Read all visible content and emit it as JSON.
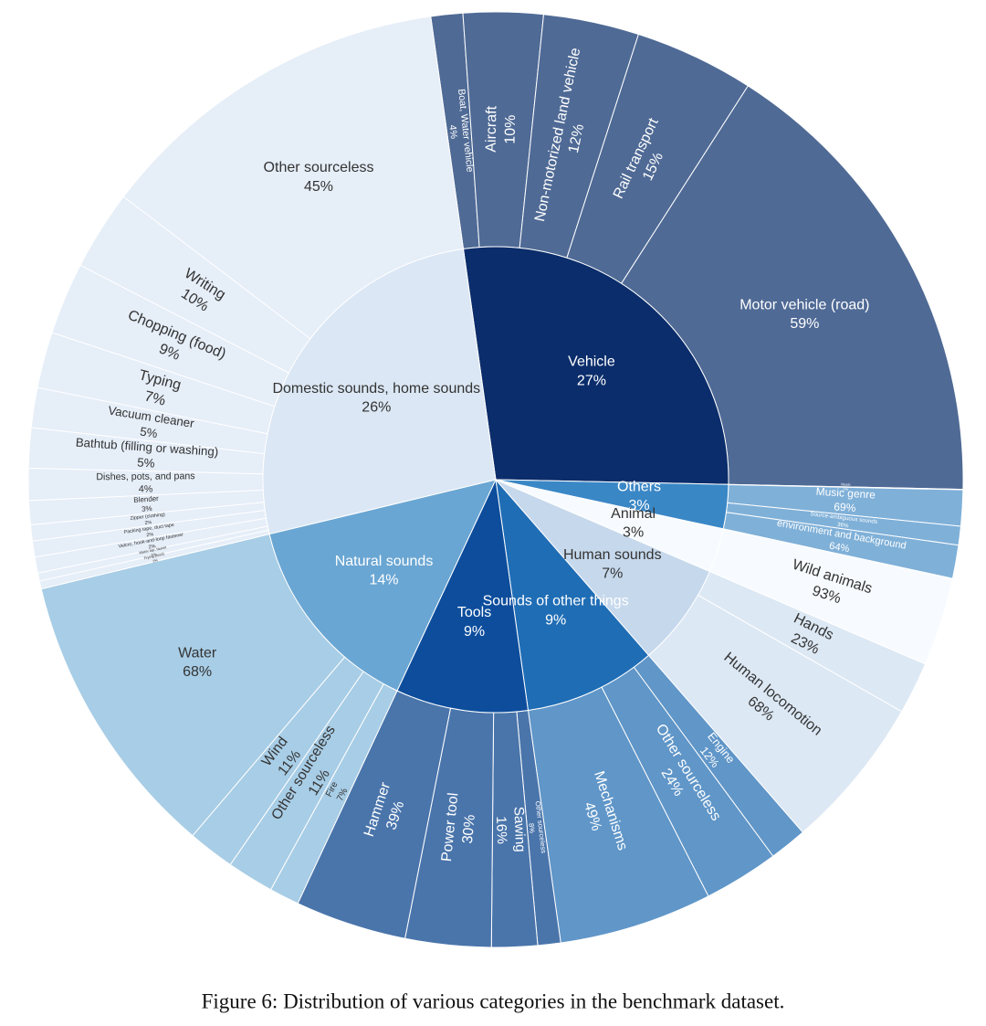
{
  "chart_data": {
    "type": "sunburst",
    "caption": "Figure 6: Distribution of various categories in the benchmark dataset.",
    "nodes": [
      {
        "name": "Vehicle",
        "value": 27,
        "value_label": "27%",
        "color": "#0b2d6b",
        "child_color": "#4f6a95",
        "children": [
          {
            "name": "Boat, Water vehicle",
            "value": 4,
            "value_label": "4%"
          },
          {
            "name": "Aircraft",
            "value": 10,
            "value_label": "10%"
          },
          {
            "name": "Non-motorized land vehicle",
            "value": 12,
            "value_label": "12%"
          },
          {
            "name": "Rail transport",
            "value": 15,
            "value_label": "15%"
          },
          {
            "name": "Motor vehicle (road)",
            "value": 59,
            "value_label": "59%"
          }
        ]
      },
      {
        "name": "Others",
        "value": 3,
        "value_label": "3%",
        "color": "#3a87c6",
        "child_color": "#7fb0d8",
        "children": [
          {
            "name": "Music",
            "value": 1,
            "value_label": "1%"
          },
          {
            "name": "Music genre",
            "value": 69,
            "value_label": "69%"
          },
          {
            "name": "Source-ambiguous sounds",
            "value": 36,
            "value_label": "36%"
          },
          {
            "name": "environment and background",
            "value": 64,
            "value_label": "64%"
          }
        ]
      },
      {
        "name": "Animal",
        "value": 3,
        "value_label": "3%",
        "color": "#f7fbff",
        "child_color": "#f7fbff",
        "children": [
          {
            "name": "Wild animals",
            "value": 93,
            "value_label": "93%"
          }
        ]
      },
      {
        "name": "Human sounds",
        "value": 7,
        "value_label": "7%",
        "color": "#c6d8ec",
        "child_color": "#dce8f4",
        "children": [
          {
            "name": "Hands",
            "value": 23,
            "value_label": "23%"
          },
          {
            "name": "Human locomotion",
            "value": 68,
            "value_label": "68%"
          }
        ]
      },
      {
        "name": "Sounds of other things",
        "value": 9,
        "value_label": "9%",
        "color": "#1f6db5",
        "child_color": "#6096c8",
        "children": [
          {
            "name": "Engine",
            "value": 12,
            "value_label": "12%"
          },
          {
            "name": "Other sourceless",
            "value": 24,
            "value_label": "24%"
          },
          {
            "name": "Mechanisms",
            "value": 49,
            "value_label": "49%"
          }
        ]
      },
      {
        "name": "Tools",
        "value": 9,
        "value_label": "9%",
        "color": "#0d4d9c",
        "child_color": "#4a75ab",
        "children": [
          {
            "name": "Other sourceless",
            "value": 8,
            "value_label": "8%"
          },
          {
            "name": "Sawing",
            "value": 16,
            "value_label": "16%"
          },
          {
            "name": "Power tool",
            "value": 30,
            "value_label": "30%"
          },
          {
            "name": "Hammer",
            "value": 39,
            "value_label": "39%"
          }
        ]
      },
      {
        "name": "Natural sounds",
        "value": 14,
        "value_label": "14%",
        "color": "#6aa6d3",
        "child_color": "#a8cde6",
        "children": [
          {
            "name": "Fire",
            "value": 7,
            "value_label": "7%"
          },
          {
            "name": "Other sourceless",
            "value": 11,
            "value_label": "11%"
          },
          {
            "name": "Wind",
            "value": 11,
            "value_label": "11%"
          },
          {
            "name": "Water",
            "value": 68,
            "value_label": "68%"
          }
        ]
      },
      {
        "name": "Domestic sounds, home sounds",
        "value": 26,
        "value_label": "26%",
        "color": "#dbe7f4",
        "child_color": "#e6eef8",
        "children": [
          {
            "name": "Frying (food)",
            "value": 1,
            "value_label": "1%"
          },
          {
            "name": "Water tap, faucet",
            "value": 1,
            "value_label": "1%"
          },
          {
            "name": "Velcro, hook-and-loop fastener",
            "value": 2,
            "value_label": "2%"
          },
          {
            "name": "Packing tape, duct tape",
            "value": 2,
            "value_label": "2%"
          },
          {
            "name": "Zipper (clothing)",
            "value": 2,
            "value_label": "2%"
          },
          {
            "name": "Blender",
            "value": 3,
            "value_label": "3%"
          },
          {
            "name": "Dishes, pots, and pans",
            "value": 4,
            "value_label": "4%"
          },
          {
            "name": "Bathtub (filling or washing)",
            "value": 5,
            "value_label": "5%"
          },
          {
            "name": "Vacuum cleaner",
            "value": 5,
            "value_label": "5%"
          },
          {
            "name": "Typing",
            "value": 7,
            "value_label": "7%"
          },
          {
            "name": "Chopping (food)",
            "value": 9,
            "value_label": "9%"
          },
          {
            "name": "Writing",
            "value": 10,
            "value_label": "10%"
          },
          {
            "name": "Other sourceless",
            "value": 45,
            "value_label": "45%"
          }
        ]
      }
    ]
  }
}
